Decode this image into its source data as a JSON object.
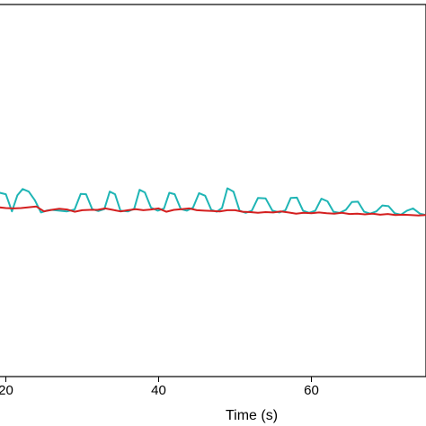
{
  "chart_data": {
    "type": "line",
    "xlabel": "Time (s)",
    "ylabel": "",
    "xlim": [
      19,
      75
    ],
    "ylim": [
      0,
      1
    ],
    "x_ticks": [
      20,
      40,
      60
    ],
    "x_tick_labels": [
      "20",
      "40",
      "60"
    ],
    "grid": false,
    "series": [
      {
        "name": "",
        "color": "#1fb5b5",
        "x": [
          19,
          20,
          20.8,
          21.5,
          22.2,
          23,
          23.8,
          24.6,
          25.3,
          26,
          27,
          28,
          29,
          29.8,
          30.5,
          31.3,
          32.1,
          32.9,
          33.6,
          34.3,
          35,
          36,
          36.8,
          37.5,
          38.2,
          39,
          39.9,
          40.7,
          41.4,
          42.1,
          42.9,
          43.7,
          44.5,
          45.3,
          46.1,
          46.9,
          47.6,
          48.3,
          49,
          49.8,
          50.6,
          51.4,
          52.2,
          53,
          54,
          54.9,
          55.8,
          56.6,
          57.3,
          58.1,
          58.9,
          59.7,
          60.5,
          61.3,
          62.1,
          62.9,
          63.7,
          64.5,
          65.3,
          66.1,
          66.9,
          67.7,
          68.5,
          69.3,
          70.1,
          70.9,
          71.7,
          72.5,
          73.3,
          74.2,
          75
        ],
        "y": [
          0.495,
          0.49,
          0.444,
          0.487,
          0.504,
          0.497,
          0.474,
          0.441,
          0.446,
          0.448,
          0.446,
          0.444,
          0.449,
          0.491,
          0.49,
          0.45,
          0.445,
          0.45,
          0.497,
          0.49,
          0.446,
          0.444,
          0.451,
          0.502,
          0.495,
          0.454,
          0.446,
          0.452,
          0.494,
          0.49,
          0.45,
          0.446,
          0.454,
          0.493,
          0.486,
          0.448,
          0.443,
          0.453,
          0.506,
          0.497,
          0.446,
          0.44,
          0.446,
          0.48,
          0.479,
          0.446,
          0.441,
          0.447,
          0.48,
          0.481,
          0.446,
          0.44,
          0.446,
          0.478,
          0.471,
          0.443,
          0.44,
          0.448,
          0.469,
          0.47,
          0.443,
          0.438,
          0.444,
          0.46,
          0.458,
          0.439,
          0.435,
          0.446,
          0.452,
          0.438,
          0.434
        ]
      },
      {
        "name": "",
        "color": "#d41f1f",
        "x": [
          19,
          20,
          21,
          22,
          23,
          24,
          25,
          26,
          27,
          28,
          29,
          30,
          31,
          32,
          33,
          34,
          35,
          36,
          37,
          38,
          39,
          40,
          41,
          42,
          43,
          44,
          45,
          46,
          47,
          48,
          49,
          50,
          51,
          52,
          53,
          54,
          55,
          56,
          57,
          58,
          59,
          60,
          61,
          62,
          63,
          64,
          65,
          66,
          67,
          68,
          69,
          70,
          71,
          72,
          73,
          74,
          75
        ],
        "y": [
          0.455,
          0.453,
          0.452,
          0.453,
          0.455,
          0.457,
          0.444,
          0.448,
          0.451,
          0.449,
          0.443,
          0.447,
          0.448,
          0.448,
          0.452,
          0.448,
          0.444,
          0.447,
          0.45,
          0.447,
          0.449,
          0.452,
          0.443,
          0.448,
          0.45,
          0.452,
          0.447,
          0.446,
          0.445,
          0.444,
          0.447,
          0.447,
          0.443,
          0.442,
          0.44,
          0.442,
          0.441,
          0.444,
          0.441,
          0.438,
          0.44,
          0.439,
          0.441,
          0.439,
          0.438,
          0.44,
          0.437,
          0.438,
          0.436,
          0.438,
          0.435,
          0.437,
          0.434,
          0.435,
          0.434,
          0.433,
          0.434
        ]
      }
    ]
  }
}
